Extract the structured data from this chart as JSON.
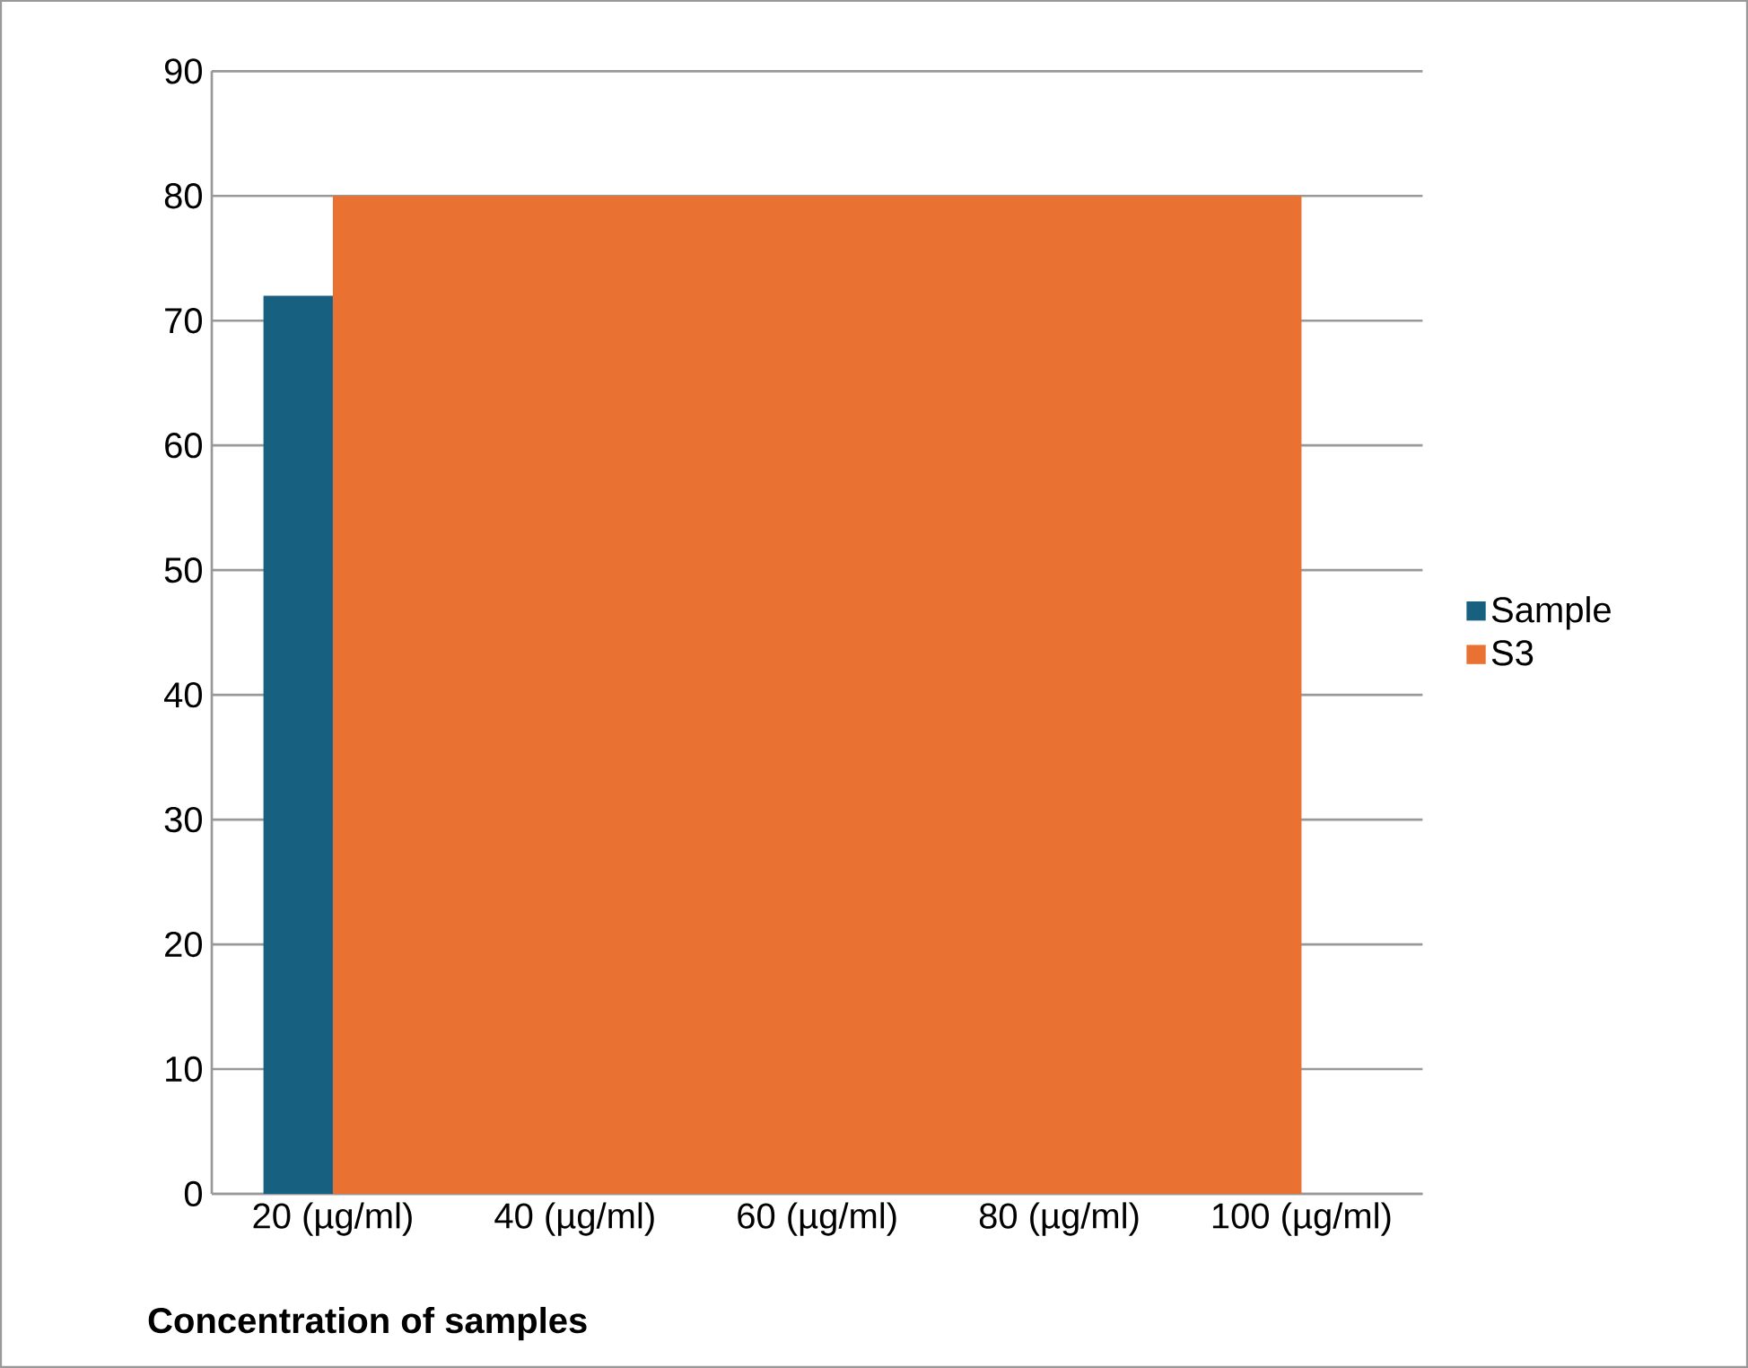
{
  "chart_data": {
    "type": "bar",
    "xlabel": "Concentration of samples",
    "categories": [
      "20 (µg/ml)",
      "40 (µg/ml)",
      "60 (µg/ml)",
      "80 (µg/ml)",
      "100 (µg/ml)"
    ],
    "series": [
      {
        "name": "Sample",
        "color": "#17607f",
        "values": [
          72,
          null,
          null,
          null,
          null
        ]
      },
      {
        "name": "S3",
        "type": "area",
        "color": "#e97132",
        "values": [
          80,
          80,
          80,
          80,
          80
        ]
      }
    ],
    "ylim": [
      0,
      90
    ],
    "yticks": [
      0,
      10,
      20,
      30,
      40,
      50,
      60,
      70,
      80,
      90
    ],
    "grid": "y",
    "legend": "right"
  }
}
